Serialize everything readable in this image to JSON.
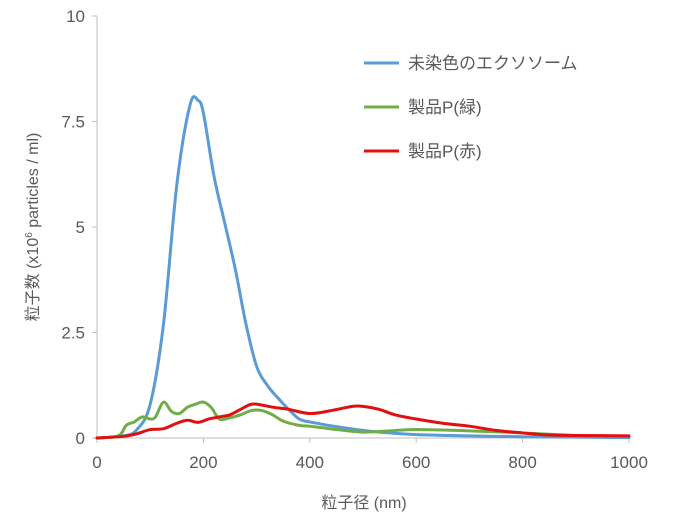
{
  "chart_data": {
    "type": "line",
    "title": "",
    "xlabel": "粒子径 (nm)",
    "ylabel": {
      "prefix": "粒子数 (x10",
      "superscript": "6",
      "suffix": " particles / ml)"
    },
    "xlim": [
      0,
      1000
    ],
    "ylim": [
      0,
      10
    ],
    "x_ticks": [
      0,
      200,
      400,
      600,
      800,
      1000
    ],
    "x_tick_labels": [
      "0",
      "200",
      "400",
      "600",
      "800",
      "1000"
    ],
    "y_ticks": [
      0,
      2.5,
      5,
      7.5,
      10
    ],
    "y_tick_labels": [
      "0",
      "2.5",
      "5",
      "7.5",
      "10"
    ],
    "grid": false,
    "legend_position": "top-right",
    "series": [
      {
        "name": "未染色のエクソソーム",
        "color": "#5b9bd5",
        "x": [
          0,
          50,
          75,
          100,
          125,
          150,
          175,
          190,
          200,
          220,
          240,
          260,
          280,
          300,
          320,
          340,
          360,
          380,
          400,
          450,
          500,
          550,
          600,
          700,
          800,
          900,
          1000
        ],
        "y": [
          0,
          0.05,
          0.2,
          0.8,
          2.7,
          6.0,
          7.9,
          8.0,
          7.7,
          6.2,
          5.1,
          4.0,
          2.7,
          1.7,
          1.25,
          0.95,
          0.68,
          0.45,
          0.38,
          0.27,
          0.18,
          0.12,
          0.08,
          0.05,
          0.03,
          0.02,
          0.01
        ]
      },
      {
        "name": "製品P(緑)",
        "color": "#70ad47",
        "x": [
          0,
          40,
          55,
          70,
          85,
          100,
          110,
          125,
          140,
          155,
          170,
          185,
          200,
          215,
          230,
          250,
          270,
          290,
          310,
          330,
          350,
          380,
          400,
          450,
          500,
          550,
          600,
          700,
          800,
          900,
          1000
        ],
        "y": [
          0,
          0.05,
          0.3,
          0.38,
          0.5,
          0.45,
          0.5,
          0.85,
          0.63,
          0.58,
          0.73,
          0.8,
          0.85,
          0.72,
          0.45,
          0.48,
          0.55,
          0.65,
          0.65,
          0.55,
          0.4,
          0.3,
          0.28,
          0.2,
          0.14,
          0.17,
          0.2,
          0.17,
          0.12,
          0.06,
          0.03
        ]
      },
      {
        "name": "製品P(赤)",
        "color": "#e01010",
        "x": [
          0,
          50,
          75,
          100,
          125,
          150,
          170,
          190,
          210,
          230,
          250,
          270,
          290,
          310,
          330,
          360,
          400,
          440,
          480,
          500,
          530,
          560,
          600,
          650,
          700,
          750,
          800,
          850,
          900,
          1000
        ],
        "y": [
          0,
          0.04,
          0.1,
          0.2,
          0.22,
          0.35,
          0.42,
          0.37,
          0.45,
          0.5,
          0.55,
          0.68,
          0.8,
          0.78,
          0.73,
          0.68,
          0.58,
          0.65,
          0.75,
          0.75,
          0.68,
          0.55,
          0.45,
          0.35,
          0.28,
          0.18,
          0.12,
          0.07,
          0.06,
          0.05
        ]
      }
    ]
  }
}
